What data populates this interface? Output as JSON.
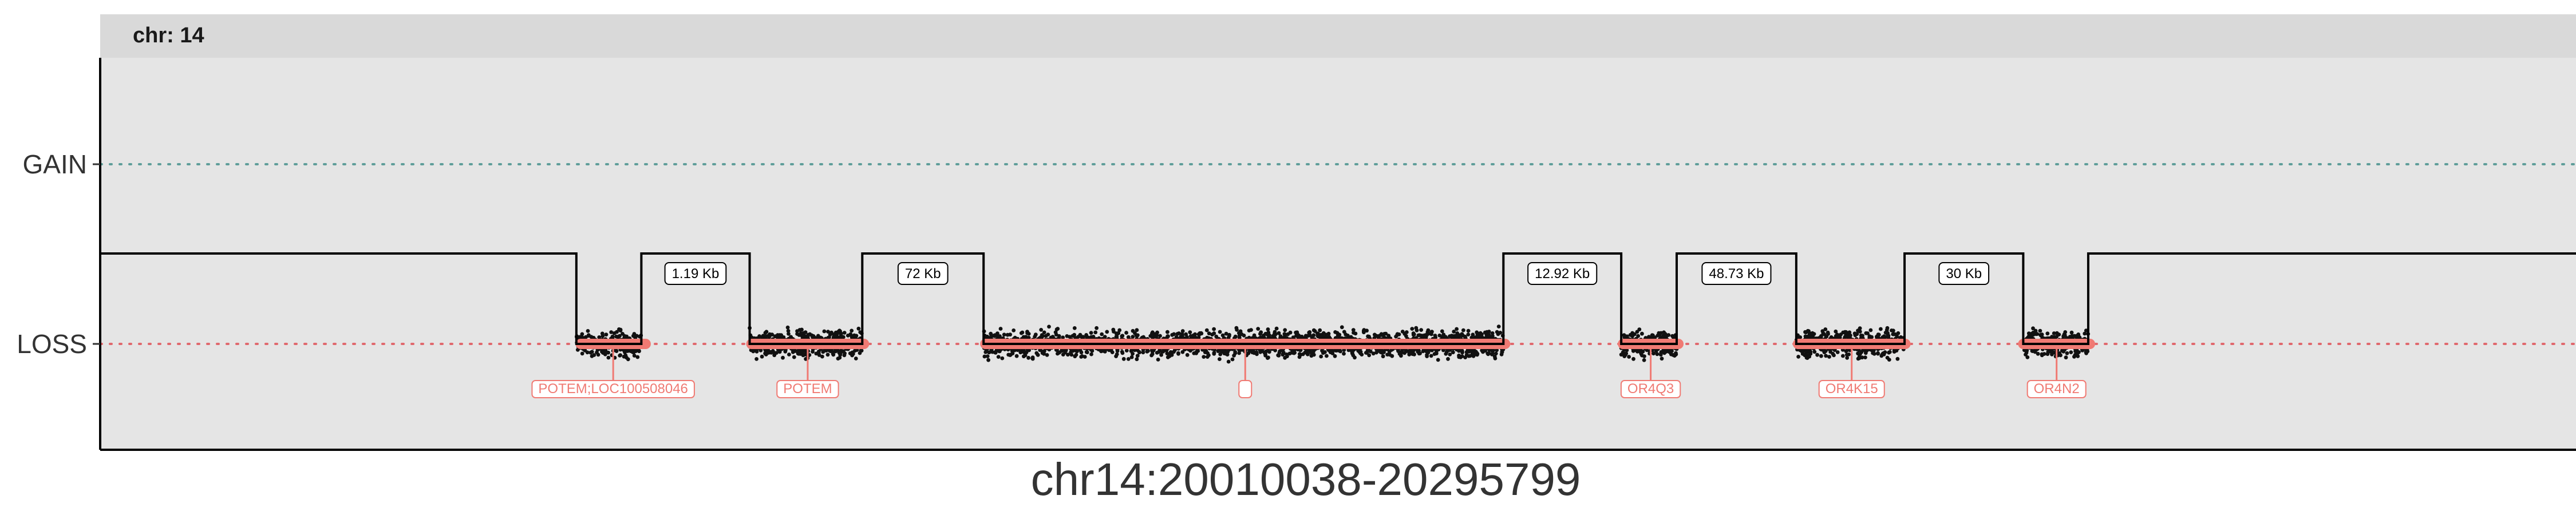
{
  "chart_data": {
    "type": "scatter",
    "facet_label": "chr: 14",
    "xlabel": "chr14:20010038-20295799",
    "xlim": [
      20010038,
      20295799
    ],
    "y_categories": [
      "LOSS",
      "GAIN"
    ],
    "ylabel": "",
    "grid": false,
    "colors": {
      "panel": "#e5e5e5",
      "strip": "#d9d9d9",
      "gain_line": "#5f9e9a",
      "loss_line": "#e0686d",
      "gene": "#f07a73",
      "points": "#111111",
      "state_line": "#000000"
    },
    "baseline_state": "NEUTRAL",
    "loss_segments": [
      {
        "start": 20065000,
        "end": 20072500
      },
      {
        "start": 20085000,
        "end": 20098000
      },
      {
        "start": 20112000,
        "end": 20172000
      },
      {
        "start": 20185600,
        "end": 20192000
      },
      {
        "start": 20205800,
        "end": 20218300
      },
      {
        "start": 20232000,
        "end": 20239500
      }
    ],
    "gaps": [
      {
        "start": 20072500,
        "end": 20085000,
        "label": "1.19 Kb"
      },
      {
        "start": 20098000,
        "end": 20112000,
        "label": "72 Kb"
      },
      {
        "start": 20172000,
        "end": 20185600,
        "label": "12.92 Kb"
      },
      {
        "start": 20192000,
        "end": 20205800,
        "label": "48.73 Kb"
      },
      {
        "start": 20218300,
        "end": 20232000,
        "label": "30 Kb"
      }
    ],
    "genes": [
      {
        "start": 20065500,
        "end": 20073000,
        "label": "POTEM;LOC100508046"
      },
      {
        "start": 20085200,
        "end": 20098200,
        "label": "POTEM"
      },
      {
        "start": 20112200,
        "end": 20172200,
        "label": ""
      },
      {
        "start": 20185800,
        "end": 20192200,
        "label": "OR4Q3"
      },
      {
        "start": 20206000,
        "end": 20218400,
        "label": "OR4K15"
      },
      {
        "start": 20232000,
        "end": 20239700,
        "label": "OR4N2"
      }
    ]
  }
}
